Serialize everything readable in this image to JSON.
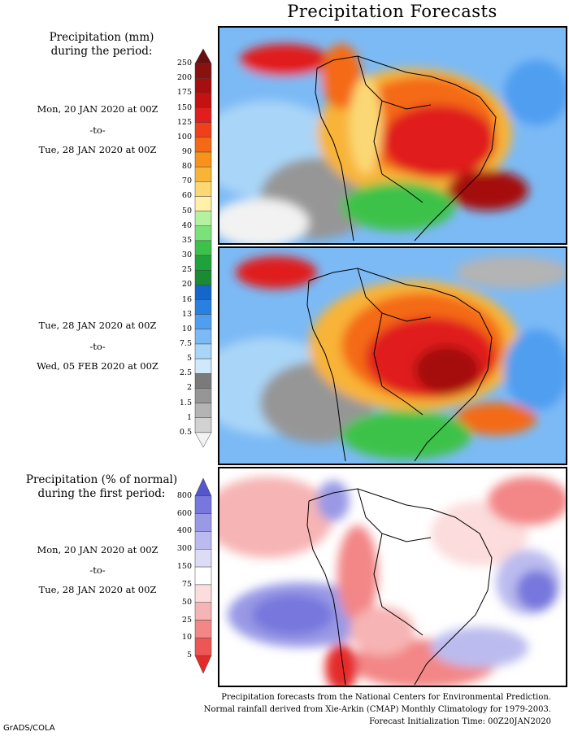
{
  "title": "Precipitation Forecasts",
  "amount_section": {
    "header": [
      "Precipitation (mm)",
      "during the period:"
    ],
    "period1": {
      "start": "Mon, 20 JAN 2020 at 00Z",
      "sep": "-to-",
      "end": "Tue, 28 JAN 2020 at 00Z"
    },
    "period2": {
      "start": "Tue, 28 JAN 2020 at 00Z",
      "sep": "-to-",
      "end": "Wed, 05 FEB 2020 at 00Z"
    },
    "colorbar": {
      "labels": [
        "250",
        "200",
        "175",
        "150",
        "125",
        "100",
        "90",
        "80",
        "70",
        "60",
        "50",
        "40",
        "35",
        "30",
        "25",
        "20",
        "16",
        "13",
        "10",
        "7.5",
        "5",
        "2.5",
        "2",
        "1.5",
        "1",
        "0.5"
      ],
      "colors": [
        "#6a0f0f",
        "#8b1010",
        "#a50f0f",
        "#c41212",
        "#e01e1e",
        "#f0401a",
        "#f46a14",
        "#f7921a",
        "#f8b437",
        "#fbd874",
        "#fff1a8",
        "#b5f2a0",
        "#7be27a",
        "#3cc24a",
        "#1fa23a",
        "#1a8b33",
        "#1466c8",
        "#2a80e0",
        "#4f9ef0",
        "#7cbaf5",
        "#a9d5f8",
        "#cfe8fa",
        "#7a7a7a",
        "#969696",
        "#b4b4b4",
        "#d2d2d2",
        "#f2f2f2"
      ]
    }
  },
  "percent_section": {
    "header": [
      "Precipitation (% of normal)",
      "during the first period:"
    ],
    "period": {
      "start": "Mon, 20 JAN 2020 at 00Z",
      "sep": "-to-",
      "end": "Tue, 28 JAN 2020 at 00Z"
    },
    "colorbar": {
      "labels": [
        "800",
        "600",
        "400",
        "300",
        "150",
        "75",
        "50",
        "25",
        "10",
        "5"
      ],
      "colors": [
        "#5555cc",
        "#7777dd",
        "#9999e6",
        "#bbbbef",
        "#dcdcf7",
        "#ffffff",
        "#fcdcdc",
        "#f7b4b4",
        "#f38686",
        "#ee5555",
        "#e52a2a"
      ]
    }
  },
  "footer": [
    "Precipitation forecasts from the National Centers for Environmental Prediction.",
    "Normal rainfall derived from Xie-Arkin (CMAP) Monthly Climatology for 1979-2003.",
    "Forecast Initialization Time: 00Z20JAN2020"
  ],
  "credit": "GrADS/COLA"
}
